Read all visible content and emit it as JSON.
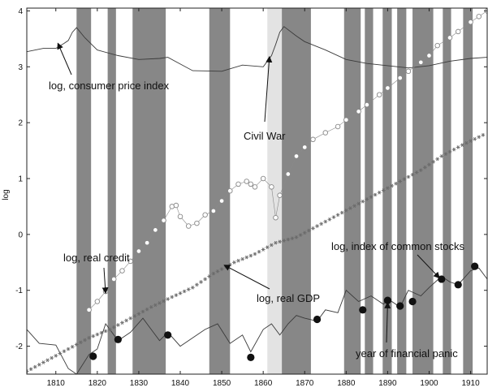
{
  "chart_data": {
    "type": "line",
    "title": "",
    "xlabel": "",
    "ylabel": "log",
    "xlim": [
      1803,
      1914
    ],
    "ylim": [
      -2.5,
      4.05
    ],
    "x_ticks": [
      1810,
      1820,
      1830,
      1840,
      1850,
      1860,
      1870,
      1880,
      1890,
      1900,
      1910
    ],
    "y_ticks": [
      -2,
      -1,
      0,
      1,
      2,
      3,
      4
    ],
    "grid": false,
    "legend": "none",
    "recession_bands": [
      [
        1815,
        1818.5
      ],
      [
        1822.5,
        1824.5
      ],
      [
        1828.5,
        1836.5
      ],
      [
        1847,
        1852
      ],
      [
        1864.5,
        1871.5
      ],
      [
        1879.5,
        1883.5
      ],
      [
        1884.5,
        1886.5
      ],
      [
        1888.8,
        1891
      ],
      [
        1892.3,
        1894.5
      ],
      [
        1896,
        1901
      ],
      [
        1903.3,
        1905.3
      ],
      [
        1908.2,
        1910.5
      ]
    ],
    "civil_war_band": [
      1861,
      1865
    ],
    "colors": {
      "recession": "#878787",
      "civil_war": "#e3e3e3",
      "line": "#3a3a3a",
      "markers": "#111111"
    },
    "series": [
      {
        "name": "log, consumer price index",
        "style": "line",
        "x": [
          1803,
          1807,
          1810,
          1812,
          1813,
          1814,
          1815,
          1817,
          1820,
          1825,
          1830,
          1835,
          1837,
          1840,
          1843,
          1850,
          1855,
          1860,
          1862,
          1863,
          1864,
          1865,
          1868,
          1870,
          1875,
          1880,
          1885,
          1890,
          1895,
          1900,
          1905,
          1910,
          1914
        ],
        "y": [
          3.27,
          3.33,
          3.33,
          3.42,
          3.47,
          3.62,
          3.7,
          3.52,
          3.3,
          3.2,
          3.13,
          3.15,
          3.17,
          3.05,
          2.93,
          2.92,
          3.03,
          3.0,
          3.2,
          3.4,
          3.62,
          3.72,
          3.55,
          3.45,
          3.3,
          3.13,
          3.06,
          3.02,
          2.98,
          3.02,
          3.1,
          3.15,
          3.17
        ]
      },
      {
        "name": "log, index of common stocks",
        "style": "open-circles",
        "x": [
          1818,
          1820,
          1822,
          1824,
          1826,
          1828,
          1830,
          1832,
          1834,
          1836,
          1838,
          1839,
          1840,
          1842,
          1844,
          1846,
          1848,
          1850,
          1852,
          1854,
          1856,
          1857,
          1858,
          1860,
          1862,
          1863,
          1864,
          1866,
          1868,
          1870,
          1872,
          1875,
          1878,
          1880,
          1883,
          1885,
          1888,
          1890,
          1893,
          1895,
          1898,
          1900,
          1902,
          1905,
          1907,
          1910,
          1912,
          1914
        ],
        "y": [
          -1.35,
          -1.2,
          -1.02,
          -0.8,
          -0.65,
          -0.48,
          -0.3,
          -0.15,
          0.08,
          0.25,
          0.5,
          0.52,
          0.32,
          0.15,
          0.2,
          0.35,
          0.42,
          0.6,
          0.78,
          0.9,
          0.95,
          0.9,
          0.85,
          1.0,
          0.85,
          0.3,
          0.7,
          1.08,
          1.4,
          1.56,
          1.7,
          1.82,
          1.93,
          2.05,
          2.2,
          2.32,
          2.5,
          2.62,
          2.8,
          2.92,
          3.08,
          3.2,
          3.38,
          3.52,
          3.63,
          3.8,
          3.9,
          4.0
        ]
      },
      {
        "name": "log, real GDP",
        "style": "asterisks",
        "x": [
          1803,
          1808,
          1813,
          1818,
          1823,
          1828,
          1833,
          1838,
          1843,
          1848,
          1853,
          1858,
          1863,
          1868,
          1873,
          1878,
          1883,
          1888,
          1893,
          1898,
          1903,
          1908,
          1913
        ],
        "y": [
          -2.45,
          -2.25,
          -2.05,
          -1.85,
          -1.7,
          -1.5,
          -1.3,
          -1.12,
          -0.95,
          -0.7,
          -0.5,
          -0.35,
          -0.15,
          -0.05,
          0.15,
          0.35,
          0.55,
          0.75,
          0.95,
          1.15,
          1.4,
          1.6,
          1.78
        ]
      },
      {
        "name": "log, real credit",
        "style": "line",
        "x": [
          1803,
          1806,
          1810,
          1813,
          1815,
          1818,
          1820,
          1822,
          1825,
          1828,
          1831,
          1833,
          1835,
          1837,
          1840,
          1843,
          1846,
          1849,
          1852,
          1855,
          1857,
          1860,
          1862,
          1864,
          1866,
          1868,
          1870,
          1873,
          1875,
          1878,
          1880,
          1883,
          1886,
          1889,
          1890,
          1893,
          1895,
          1898,
          1900,
          1903,
          1905,
          1907,
          1910,
          1912,
          1914
        ],
        "y": [
          -1.7,
          -1.95,
          -1.98,
          -2.4,
          -2.5,
          -2.15,
          -2.05,
          -1.6,
          -1.9,
          -1.75,
          -1.5,
          -1.7,
          -1.9,
          -1.75,
          -2.0,
          -1.85,
          -1.7,
          -1.6,
          -1.95,
          -1.8,
          -2.1,
          -1.7,
          -1.6,
          -1.8,
          -1.6,
          -1.45,
          -1.5,
          -1.55,
          -1.35,
          -1.4,
          -1.0,
          -1.2,
          -1.1,
          -1.25,
          -1.15,
          -1.3,
          -1.0,
          -1.1,
          -0.95,
          -0.75,
          -0.85,
          -0.9,
          -0.65,
          -0.6,
          -0.8
        ]
      }
    ],
    "panic_years": {
      "name": "year of financial panic",
      "x": [
        1819,
        1825,
        1837,
        1857,
        1873,
        1884,
        1890,
        1893,
        1896,
        1903,
        1907,
        1911
      ],
      "y": [
        -2.18,
        -1.88,
        -1.8,
        -2.2,
        -1.52,
        -1.35,
        -1.18,
        -1.28,
        -1.2,
        -0.8,
        -0.9,
        -0.57
      ]
    },
    "annotations": [
      {
        "id": "cpi",
        "text": "log, consumer price index"
      },
      {
        "id": "civil",
        "text": "Civil War"
      },
      {
        "id": "credit",
        "text": "log, real credit"
      },
      {
        "id": "stocks",
        "text": "log, index of common stocks"
      },
      {
        "id": "gdp",
        "text": "log, real GDP"
      },
      {
        "id": "panic",
        "text": "year of financial panic"
      }
    ]
  }
}
